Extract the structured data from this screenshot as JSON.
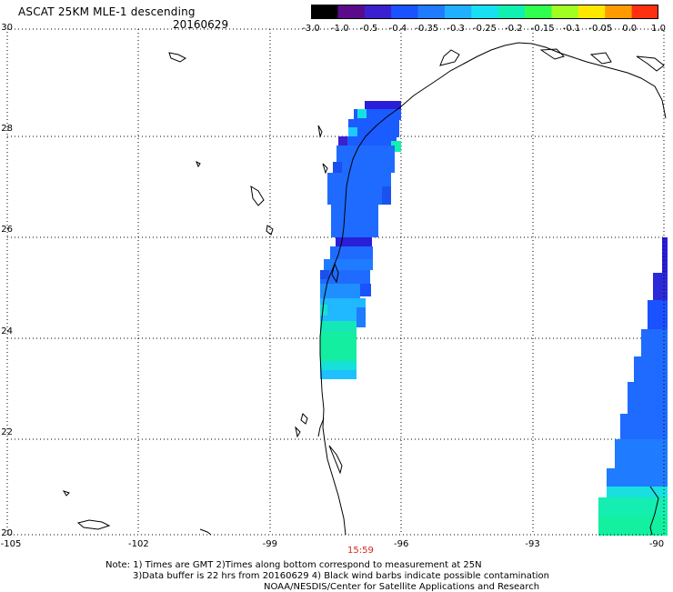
{
  "header": {
    "title": "ASCAT 25KM MLE-1 descending",
    "date": "20160629"
  },
  "colorbar": {
    "labels": [
      "-3.0",
      "-1.0",
      "-0.5",
      "-0.4",
      "-0.35",
      "-0.3",
      "-0.25",
      "-0.2",
      "-0.15",
      "-0.1",
      "-0.05",
      "0.0",
      "1.0"
    ],
    "colors": [
      "#000000",
      "#5a0a8a",
      "#3b20d0",
      "#1a52ff",
      "#1f7bff",
      "#20b0ff",
      "#18e0f0",
      "#10f0b0",
      "#30ff50",
      "#a0ff20",
      "#ffe800",
      "#ff9a00",
      "#ff3010"
    ]
  },
  "axes": {
    "lat_labels": [
      "30",
      "28",
      "26",
      "24",
      "22",
      "20"
    ],
    "lat_values": [
      30,
      28,
      26,
      24,
      22,
      20
    ],
    "lon_labels": [
      "-105",
      "-102",
      "-99",
      "-96",
      "-93",
      "-90"
    ],
    "lon_values": [
      -105,
      -102,
      -99,
      -96,
      -93,
      -90
    ],
    "lon_range": [
      -105,
      -90
    ],
    "lat_range": [
      20,
      30
    ],
    "gridlines": true
  },
  "time_label": "15:59",
  "notes": [
    "Note: 1) Times are GMT 2)Times along bottom correspond to measurement at 25N",
    "3)Data buffer is 22 hrs from 20160629 4) Black wind barbs indicate possible contamination",
    "NOAA/NESDIS/Center for Satellite Applications and Research"
  ]
}
